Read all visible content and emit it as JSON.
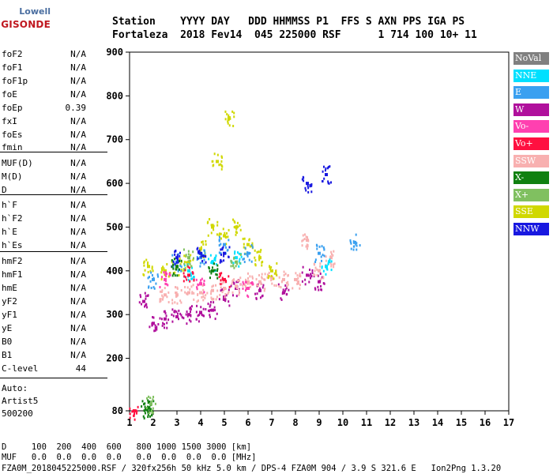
{
  "logo": {
    "line1": "Lowell",
    "line2": "DIGISONDE"
  },
  "header": {
    "row1": "Station    YYYY DAY   DDD HHMMSS P1  FFS S AXN PPS IGA PS",
    "row2": "Fortaleza  2018 Fev14  045 225000 RSF      1 714 100 10+ 11"
  },
  "params": [
    {
      "name": "foF2",
      "value": "N/A"
    },
    {
      "name": "foF1",
      "value": "N/A"
    },
    {
      "name": "foF1p",
      "value": "N/A"
    },
    {
      "name": "foE",
      "value": "N/A"
    },
    {
      "name": "foEp",
      "value": "0.39"
    },
    {
      "name": "fxI",
      "value": "N/A"
    },
    {
      "name": "foEs",
      "value": "N/A"
    },
    {
      "name": "fmin",
      "value": "N/A"
    },
    {
      "name": "MUF(D)",
      "value": "N/A"
    },
    {
      "name": "M(D)",
      "value": "N/A"
    },
    {
      "name": "D",
      "value": "N/A"
    },
    {
      "name": "h`F",
      "value": "N/A"
    },
    {
      "name": "h`F2",
      "value": "N/A"
    },
    {
      "name": "h`E",
      "value": "N/A"
    },
    {
      "name": "h`Es",
      "value": "N/A"
    },
    {
      "name": "hmF2",
      "value": "N/A"
    },
    {
      "name": "hmF1",
      "value": "N/A"
    },
    {
      "name": "hmE",
      "value": "N/A"
    },
    {
      "name": "yF2",
      "value": "N/A"
    },
    {
      "name": "yF1",
      "value": "N/A"
    },
    {
      "name": "yE",
      "value": "N/A"
    },
    {
      "name": "B0",
      "value": "N/A"
    },
    {
      "name": "B1",
      "value": "N/A"
    },
    {
      "name": "C-level",
      "value": "44"
    }
  ],
  "auto": {
    "line1": "Auto:",
    "line2": "Artist5",
    "line3": "500200"
  },
  "footer": {
    "line1": "D     100  200  400  600   800 1000 1500 3000 [km]",
    "line2": "MUF   0.0  0.0  0.0  0.0   0.0  0.0  0.0  0.0 [MHz]",
    "line3": "FZA0M_2018045225000.RSF / 320fx256h 50 kHz 5.0 km / DPS-4 FZA0M 904 / 3.9 S 321.6 E   Ion2Png 1.3.20"
  },
  "legend": [
    {
      "label": "NoVal",
      "color": "#808080"
    },
    {
      "label": "NNE",
      "color": "#00e0ff"
    },
    {
      "label": "E",
      "color": "#3aa0f0"
    },
    {
      "label": "W",
      "color": "#b0109c"
    },
    {
      "label": "Vo-",
      "color": "#ff40b0"
    },
    {
      "label": "Vo+",
      "color": "#ff1040"
    },
    {
      "label": "SSW",
      "color": "#f8b0b0"
    },
    {
      "label": "X-",
      "color": "#108010"
    },
    {
      "label": "X+",
      "color": "#80c060"
    },
    {
      "label": "SSE",
      "color": "#d0d800"
    },
    {
      "label": "NNW",
      "color": "#1818e0"
    }
  ],
  "chart_data": {
    "type": "scatter",
    "title": "",
    "xlabel": "",
    "ylabel": "",
    "xlim": [
      1,
      17
    ],
    "ylim": [
      80,
      900
    ],
    "xticks": [
      1,
      2,
      3,
      4,
      5,
      6,
      7,
      8,
      9,
      10,
      11,
      12,
      13,
      14,
      15,
      16,
      17
    ],
    "yticks": [
      80,
      200,
      300,
      400,
      500,
      600,
      700,
      800,
      900
    ],
    "grid": false,
    "legend_position": "right",
    "series": [
      {
        "name": "W",
        "points": [
          [
            1.6,
            330
          ],
          [
            2.0,
            280
          ],
          [
            2.5,
            290
          ],
          [
            3.0,
            295
          ],
          [
            3.5,
            300
          ],
          [
            4.0,
            305
          ],
          [
            4.5,
            310
          ],
          [
            5.0,
            340
          ],
          [
            5.5,
            360
          ],
          [
            6.5,
            355
          ],
          [
            7.5,
            350
          ],
          [
            8.5,
            390
          ],
          [
            9.0,
            375
          ]
        ]
      },
      {
        "name": "SSW",
        "points": [
          [
            2.5,
            345
          ],
          [
            3.0,
            345
          ],
          [
            3.5,
            350
          ],
          [
            4.0,
            350
          ],
          [
            4.5,
            355
          ],
          [
            5.0,
            360
          ],
          [
            5.5,
            365
          ],
          [
            6.0,
            375
          ],
          [
            6.5,
            375
          ],
          [
            7.0,
            385
          ],
          [
            7.5,
            380
          ],
          [
            8.0,
            380
          ],
          [
            8.5,
            470
          ],
          [
            9.0,
            400
          ],
          [
            9.5,
            430
          ]
        ]
      },
      {
        "name": "SSE",
        "points": [
          [
            1.8,
            410
          ],
          [
            2.5,
            400
          ],
          [
            3.0,
            410
          ],
          [
            3.5,
            420
          ],
          [
            4.0,
            450
          ],
          [
            4.5,
            500
          ],
          [
            5.0,
            480
          ],
          [
            5.5,
            500
          ],
          [
            6.0,
            460
          ],
          [
            6.5,
            430
          ],
          [
            7.0,
            400
          ],
          [
            5.2,
            750
          ],
          [
            4.7,
            650
          ]
        ]
      },
      {
        "name": "E",
        "points": [
          [
            2.0,
            380
          ],
          [
            3.0,
            420
          ],
          [
            4.0,
            430
          ],
          [
            5.0,
            460
          ],
          [
            6.0,
            440
          ],
          [
            9.0,
            440
          ],
          [
            10.5,
            465
          ]
        ]
      },
      {
        "name": "NNE",
        "points": [
          [
            3.5,
            400
          ],
          [
            4.5,
            420
          ],
          [
            5.5,
            430
          ],
          [
            9.3,
            410
          ]
        ]
      },
      {
        "name": "NNW",
        "points": [
          [
            3.0,
            430
          ],
          [
            4.0,
            440
          ],
          [
            5.0,
            440
          ],
          [
            8.5,
            600
          ],
          [
            9.3,
            620
          ]
        ]
      },
      {
        "name": "X-",
        "points": [
          [
            1.7,
            83
          ],
          [
            1.8,
            86
          ],
          [
            3.0,
            410
          ],
          [
            4.5,
            400
          ]
        ]
      },
      {
        "name": "X+",
        "points": [
          [
            1.9,
            95
          ],
          [
            3.5,
            430
          ],
          [
            5.5,
            420
          ]
        ]
      },
      {
        "name": "Vo-",
        "points": [
          [
            2.5,
            380
          ],
          [
            4.0,
            370
          ],
          [
            6.0,
            360
          ]
        ]
      },
      {
        "name": "Vo+",
        "points": [
          [
            1.2,
            80
          ],
          [
            3.5,
            390
          ],
          [
            5.0,
            380
          ]
        ]
      }
    ]
  }
}
